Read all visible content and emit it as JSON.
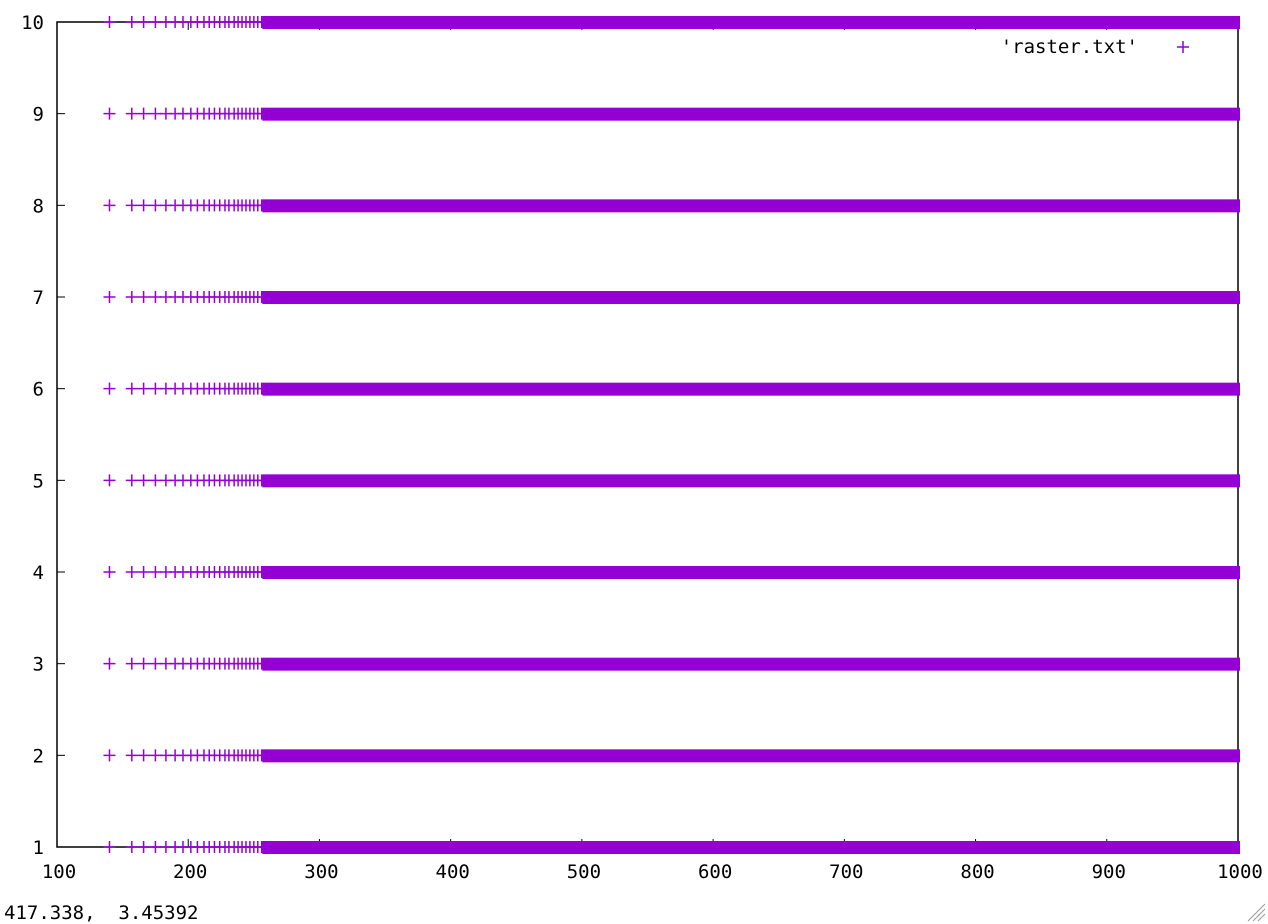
{
  "status": {
    "coordinates": "417.338,  3.45392"
  },
  "chart_data": {
    "type": "scatter",
    "title": "",
    "xlabel": "",
    "ylabel": "",
    "xlim": [
      100,
      1000
    ],
    "ylim": [
      1,
      10
    ],
    "x_ticks": [
      100,
      200,
      300,
      400,
      500,
      600,
      700,
      800,
      900,
      1000
    ],
    "y_ticks": [
      1,
      2,
      3,
      4,
      5,
      6,
      7,
      8,
      9,
      10
    ],
    "x_tick_labels": [
      "100",
      "200",
      "300",
      "400",
      "500",
      "600",
      "700",
      "800",
      "900",
      "1000"
    ],
    "y_tick_labels": [
      "1",
      "2",
      "3",
      "4",
      "5",
      "6",
      "7",
      "8",
      "9",
      "10"
    ],
    "legend_position": "top-right",
    "marker": "+",
    "grid": false,
    "series": [
      {
        "name": "'raster.txt'",
        "color": "#9400d3",
        "points_per_row": {
          "description_rows": [
            1,
            2,
            3,
            4,
            5,
            6,
            7,
            8,
            9,
            10
          ],
          "sparse_x": [
            140,
            157,
            166,
            175,
            183,
            190,
            196,
            202,
            207,
            212,
            216,
            220,
            224,
            228,
            231,
            235,
            238,
            241,
            244,
            247,
            250,
            253,
            256
          ],
          "dense_from": 258,
          "dense_to": 1000
        }
      }
    ]
  }
}
